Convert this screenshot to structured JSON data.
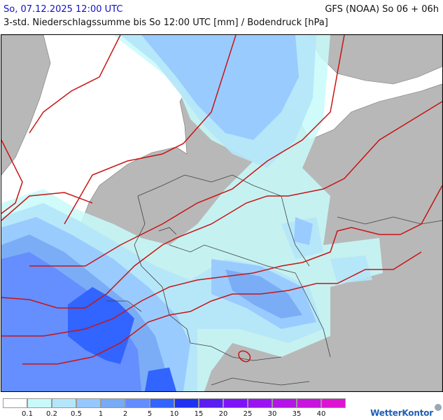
{
  "header": {
    "date_label": "So, 07.12.2025 12:00 UTC",
    "model_label": "GFS (NOAA) So 06 + 06h",
    "description": "3-std. Niederschlagssumme bis So 12:00 UTC [mm] / Bodendruck [hPa]"
  },
  "legend": {
    "swatches": [
      {
        "color": "#ffffff"
      },
      {
        "color": "#c8fafa"
      },
      {
        "color": "#b4e6fa"
      },
      {
        "color": "#96c8ff"
      },
      {
        "color": "#78aaf5"
      },
      {
        "color": "#648cff"
      },
      {
        "color": "#3264ff"
      },
      {
        "color": "#1e32f0"
      },
      {
        "color": "#5a1ef0"
      },
      {
        "color": "#7d14f5"
      },
      {
        "color": "#9a14f0"
      },
      {
        "color": "#b414e6"
      },
      {
        "color": "#c814dc"
      },
      {
        "color": "#dc14d2"
      }
    ],
    "labels": [
      "0.1",
      "0.2",
      "0.5",
      "1",
      "2",
      "5",
      "10",
      "15",
      "20",
      "25",
      "30",
      "35",
      "40"
    ]
  },
  "brand": "WetterKontor",
  "colors": {
    "land": "#b8b8b8",
    "sea": "#ffffff",
    "isobar": "#c81414",
    "border": "#404040"
  }
}
